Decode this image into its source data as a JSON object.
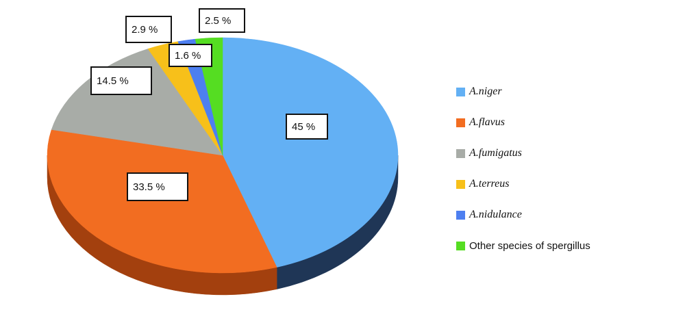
{
  "chart_data": {
    "type": "pie",
    "style": "3d",
    "title": "",
    "slices": [
      {
        "label": "A.niger",
        "value": 45,
        "display": "45 %",
        "color": "#63b0f4",
        "side_color": "#1f3656",
        "italic": true
      },
      {
        "label": "A.flavus",
        "value": 33.5,
        "display": "33.5 %",
        "color": "#f26d21",
        "side_color": "#a3400e",
        "italic": true
      },
      {
        "label": "A.fumigatus",
        "value": 14.5,
        "display": "14.5 %",
        "color": "#a8aca7",
        "side_color": "#6f736e",
        "italic": true
      },
      {
        "label": "A.terreus",
        "value": 2.9,
        "display": "2.9 %",
        "color": "#f7c01a",
        "side_color": "#a8800e",
        "italic": true
      },
      {
        "label": "A.nidulance",
        "value": 1.6,
        "display": "1.6 %",
        "color": "#4d7ff0",
        "side_color": "#2b4e9e",
        "italic": true
      },
      {
        "label": "Other species of spergillus",
        "value": 2.5,
        "display": "2.5 %",
        "color": "#55dd22",
        "side_color": "#2f8a10",
        "italic": false
      }
    ],
    "legend_position": "right"
  }
}
